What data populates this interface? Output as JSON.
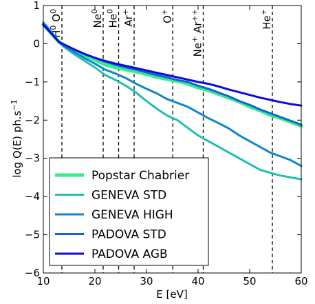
{
  "chart_data": {
    "type": "line",
    "xlabel": "E [eV]",
    "ylabel": "log Q(E) ph.s",
    "ylabel_sup": "−1",
    "xlim": [
      10,
      60
    ],
    "ylim": [
      -6,
      1
    ],
    "xticks": [
      10,
      20,
      30,
      40,
      50,
      60
    ],
    "xtick_labels": [
      "10",
      "20",
      "30",
      "40",
      "50",
      "60"
    ],
    "yticks": [
      1,
      0,
      -1,
      -2,
      -3,
      -4,
      -5,
      -6
    ],
    "ytick_labels": [
      "1",
      "0",
      "−1",
      "−2",
      "−3",
      "−4",
      "−5",
      "−6"
    ],
    "grid": false,
    "legend_position": "lower-left",
    "ionization_edges": [
      {
        "x": 13.6,
        "base": "H",
        "sup": "0",
        "second_base": "O",
        "second_sup": "0"
      },
      {
        "x": 21.6,
        "base": "Ne",
        "sup": "0"
      },
      {
        "x": 24.6,
        "base": "He",
        "sup": "0"
      },
      {
        "x": 27.6,
        "base": "Ar",
        "sup": "+"
      },
      {
        "x": 35.1,
        "base": "O",
        "sup": "+"
      },
      {
        "x": 41.0,
        "base": "Ne",
        "sup": "+",
        "second_base": "Ar",
        "second_sup": "++"
      },
      {
        "x": 54.4,
        "base": "He",
        "sup": "+"
      }
    ],
    "series": [
      {
        "name": "Popstar Chabrier",
        "color": "#33ee88",
        "width": 5,
        "x": [
          10,
          11,
          12,
          13,
          14,
          16,
          18,
          20,
          22,
          24,
          26,
          28,
          30,
          32,
          34,
          36,
          38,
          40,
          42,
          44,
          46,
          48,
          50,
          52,
          54,
          56,
          58,
          60
        ],
        "y": [
          0.5,
          0.35,
          0.2,
          0.05,
          -0.05,
          -0.18,
          -0.3,
          -0.42,
          -0.55,
          -0.62,
          -0.68,
          -0.73,
          -0.8,
          -0.87,
          -0.93,
          -0.98,
          -1.05,
          -1.15,
          -1.22,
          -1.32,
          -1.42,
          -1.52,
          -1.65,
          -1.75,
          -1.87,
          -1.95,
          -2.05,
          -2.15
        ]
      },
      {
        "name": "GENEVA STD",
        "color": "#1fbfae",
        "width": 3,
        "x": [
          10,
          11,
          12,
          13,
          14,
          16,
          18,
          20,
          22,
          24,
          26,
          28,
          30,
          32,
          34,
          36,
          38,
          40,
          42,
          44,
          46,
          48,
          50,
          52,
          54,
          56,
          58,
          60
        ],
        "y": [
          0.55,
          0.4,
          0.22,
          0.05,
          -0.08,
          -0.28,
          -0.45,
          -0.62,
          -0.82,
          -0.95,
          -1.1,
          -1.28,
          -1.5,
          -1.7,
          -1.88,
          -2.0,
          -2.2,
          -2.4,
          -2.55,
          -2.7,
          -2.85,
          -3.0,
          -3.15,
          -3.3,
          -3.38,
          -3.45,
          -3.5,
          -3.55
        ]
      },
      {
        "name": "GENEVA HIGH",
        "color": "#0f85c9",
        "width": 3,
        "x": [
          10,
          11,
          12,
          13,
          14,
          16,
          18,
          20,
          22,
          24,
          26,
          28,
          30,
          32,
          34,
          36,
          38,
          40,
          42,
          44,
          46,
          48,
          50,
          52,
          54,
          56,
          58,
          60
        ],
        "y": [
          0.55,
          0.4,
          0.22,
          0.05,
          -0.06,
          -0.22,
          -0.38,
          -0.52,
          -0.68,
          -0.78,
          -0.9,
          -1.05,
          -1.18,
          -1.3,
          -1.45,
          -1.55,
          -1.65,
          -1.8,
          -1.95,
          -2.08,
          -2.22,
          -2.4,
          -2.55,
          -2.7,
          -2.85,
          -2.95,
          -3.05,
          -3.2
        ]
      },
      {
        "name": "PADOVA STD",
        "color": "#1460d6",
        "width": 3,
        "x": [
          10,
          11,
          12,
          13,
          14,
          16,
          18,
          20,
          22,
          24,
          26,
          28,
          30,
          32,
          34,
          36,
          38,
          40,
          42,
          44,
          46,
          48,
          50,
          52,
          54,
          56,
          58,
          60
        ],
        "y": [
          0.5,
          0.35,
          0.2,
          0.05,
          -0.03,
          -0.15,
          -0.27,
          -0.37,
          -0.47,
          -0.55,
          -0.62,
          -0.68,
          -0.75,
          -0.82,
          -0.88,
          -0.95,
          -1.0,
          -1.1,
          -1.18,
          -1.28,
          -1.38,
          -1.5,
          -1.6,
          -1.72,
          -1.82,
          -1.92,
          -2.02,
          -2.12
        ]
      },
      {
        "name": "PADOVA AGB",
        "color": "#0a0ae0",
        "width": 3,
        "x": [
          10,
          11,
          12,
          13,
          14,
          16,
          18,
          20,
          22,
          24,
          26,
          28,
          30,
          32,
          34,
          36,
          38,
          40,
          42,
          44,
          46,
          48,
          50,
          52,
          54,
          56,
          58,
          60
        ],
        "y": [
          0.5,
          0.35,
          0.2,
          0.05,
          -0.02,
          -0.15,
          -0.27,
          -0.37,
          -0.45,
          -0.52,
          -0.58,
          -0.64,
          -0.7,
          -0.76,
          -0.82,
          -0.88,
          -0.94,
          -1.0,
          -1.05,
          -1.12,
          -1.2,
          -1.27,
          -1.34,
          -1.41,
          -1.47,
          -1.53,
          -1.58,
          -1.62
        ]
      }
    ]
  }
}
